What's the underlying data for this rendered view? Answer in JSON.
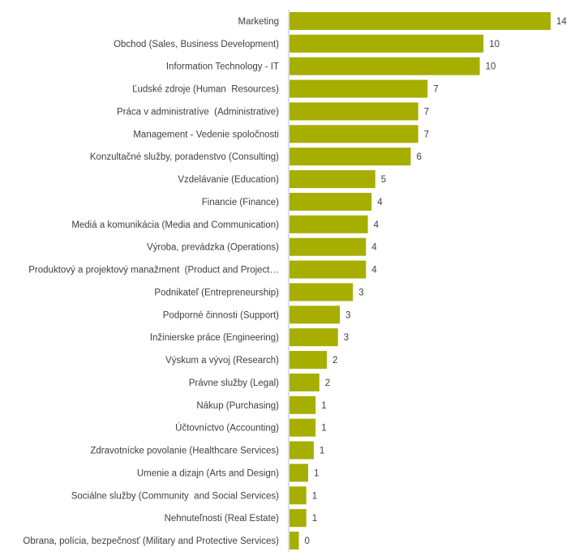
{
  "chart_data": {
    "type": "bar",
    "orientation": "horizontal",
    "bar_color": "#a6ae00",
    "axis_color": "#bfbfbf",
    "data_labels": true,
    "grid": false,
    "legend": "none",
    "categories": [
      "Marketing",
      "Obchod (Sales, Business Development)",
      "Information Technology - IT",
      "Ľudské zdroje (Human  Resources)",
      "Práca v administratíve  (Administrative)",
      "Management - Vedenie spoločnosti",
      "Konzultačné služby, poradenstvo (Consulting)",
      "Vzdelávanie (Education)",
      "Financie (Finance)",
      "Mediá a komunikácia (Media and Communication)",
      "Výroba, prevádzka (Operations)",
      "Produktový a projektový manažment  (Product and Project…",
      "Podnikateľ (Entrepreneurship)",
      "Podporné činnosti (Support)",
      "Inžinierske práce (Engineering)",
      "Výskum a vývoj (Research)",
      "Právne služby (Legal)",
      "Nákup (Purchasing)",
      "Účtovníctvo (Accounting)",
      "Zdravotnícke povolanie (Healthcare Services)",
      "Umenie a dizajn (Arts and Design)",
      "Sociálne služby (Community  and Social Services)",
      "Nehnuteľnosti (Real Estate)",
      "Obrana, polícia, bezpečnosť (Military and Protective Services)"
    ],
    "values": [
      14.0,
      10.4,
      10.2,
      7.4,
      6.9,
      6.9,
      6.5,
      4.6,
      4.4,
      4.2,
      4.1,
      4.1,
      3.4,
      2.7,
      2.6,
      2.0,
      1.6,
      1.4,
      1.4,
      1.3,
      1.0,
      0.9,
      0.9,
      0.5
    ],
    "value_labels": [
      "14",
      "10",
      "10",
      "7",
      "7",
      "7",
      "6",
      "5",
      "4",
      "4",
      "4",
      "4",
      "3",
      "3",
      "3",
      "2",
      "2",
      "1",
      "1",
      "1",
      "1",
      "1",
      "1",
      "0"
    ],
    "xlim": [
      0,
      14
    ]
  }
}
